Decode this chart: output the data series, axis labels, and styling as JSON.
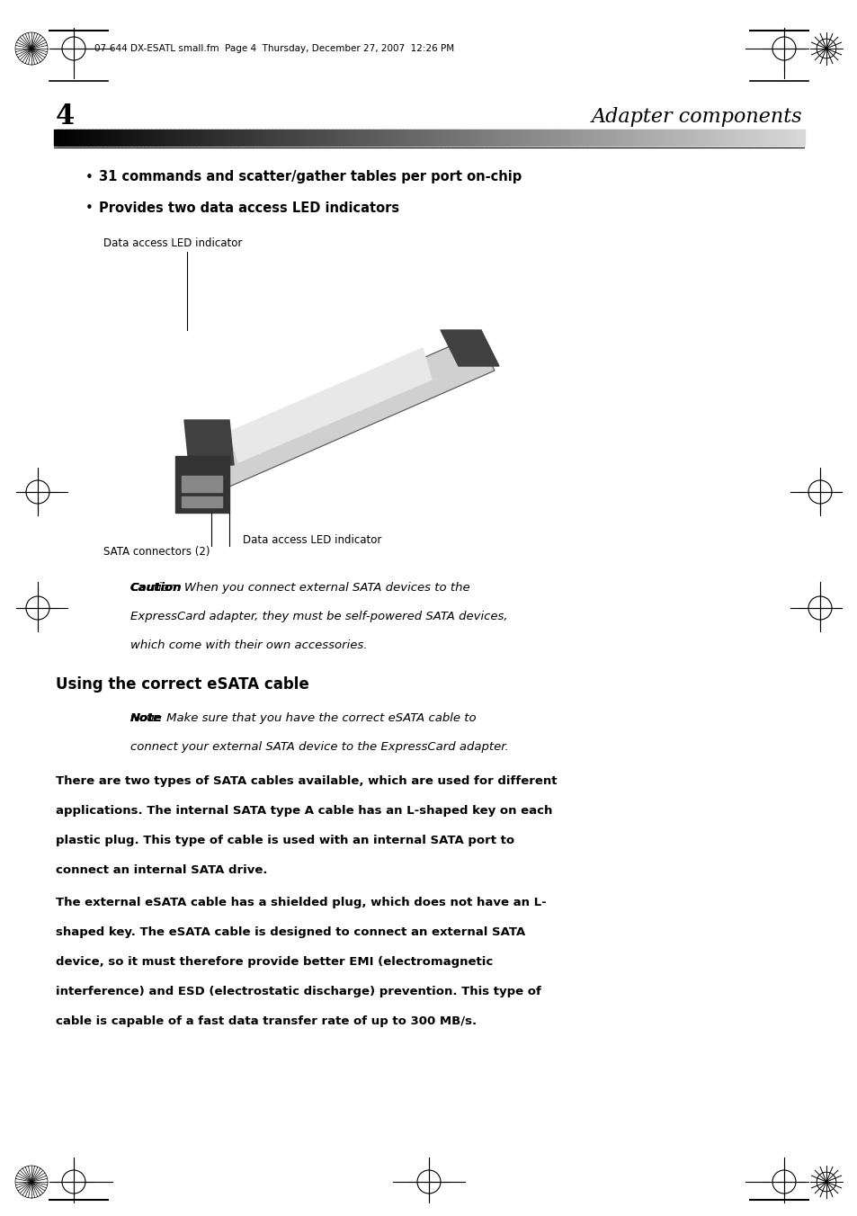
{
  "bg_color": "#ffffff",
  "page_width": 9.54,
  "page_height": 13.52,
  "header_text": "07-644 DX-ESATL small.fm  Page 4  Thursday, December 27, 2007  12:26 PM",
  "page_number": "4",
  "section_title": "Adapter components",
  "bullet1": "31 commands and scatter/gather tables per port on-chip",
  "bullet2": "Provides two data access LED indicators",
  "label_top": "Data access LED indicator",
  "label_bottom_left": "SATA connectors (2)",
  "label_bottom_right": "Data access LED indicator",
  "caution_bold": "Caution",
  "caution_text": ": When you connect external SATA devices to the\nExpressCard adapter, they must be self-powered SATA devices,\nwhich come with their own accessories.",
  "section2_title": "Using the correct eSATA cable",
  "note_bold": "Note",
  "note_text": ": Make sure that you have the correct eSATA cable to\nconnect your external SATA device to the ExpressCard adapter.",
  "para1": "There are two types of SATA cables available, which are used for different\napplications. The internal SATA type A cable has an L-shaped key on each\nplastic plug. This type of cable is used with an internal SATA port to\nconnect an internal SATA drive.",
  "para2": "The external eSATA cable has a shielded plug, which does not have an L-\nshaped key. The eSATA cable is designed to connect an external SATA\ndevice, so it must therefore provide better EMI (electromagnetic\ninterference) and ESD (electrostatic discharge) prevention. This type of\ncable is capable of a fast data transfer rate of up to 300 MB/s."
}
